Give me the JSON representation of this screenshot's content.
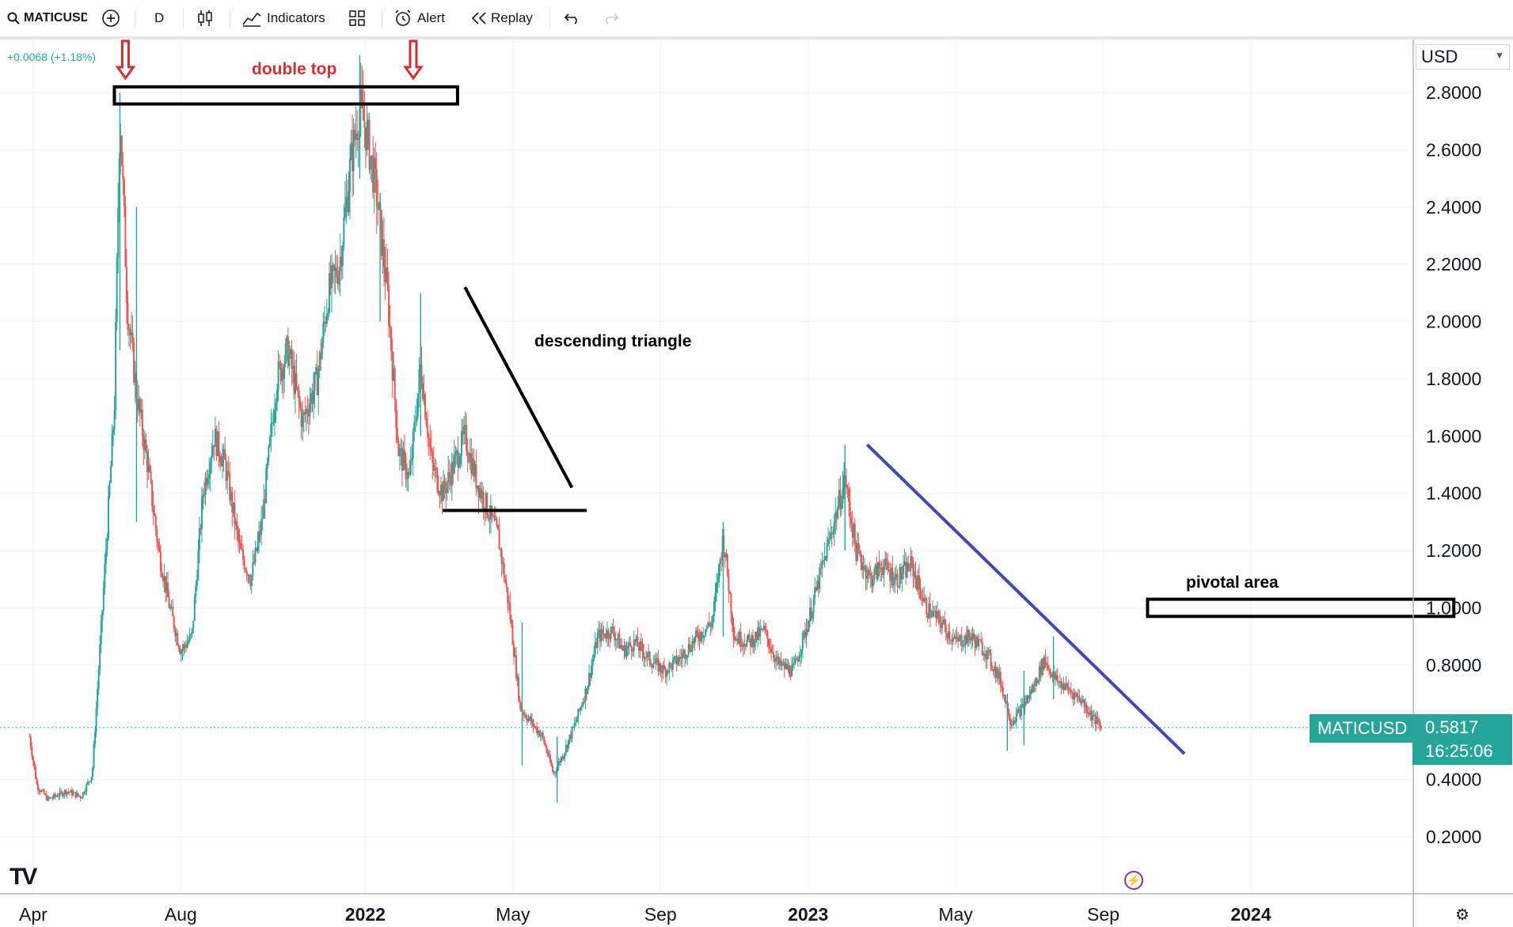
{
  "toolbar": {
    "symbol": "MATICUSD",
    "interval": "D",
    "indicators_label": "Indicators",
    "alert_label": "Alert",
    "replay_label": "Replay"
  },
  "header": {
    "change_readout": "+0.0068 (+1.18%)",
    "currency": "USD"
  },
  "price_tag": {
    "symbol": "MATICUSD",
    "price": "0.5817",
    "countdown": "16:25:06"
  },
  "annotations": {
    "double_top": "double top",
    "descending_triangle": "descending triangle",
    "pivotal_area": "pivotal area"
  },
  "colors": {
    "up": "#26a69a",
    "down": "#ef5350",
    "trendline_blue": "#3f48b8",
    "annotation_red": "#d32f2f",
    "grid": "#f0f3fa"
  },
  "chart_data": {
    "type": "candlestick",
    "title": "MATICUSD",
    "interval": "D",
    "x_axis": {
      "ticks": [
        {
          "label": "Apr",
          "month_index": 0
        },
        {
          "label": "Aug",
          "month_index": 4
        },
        {
          "label": "2022",
          "month_index": 9,
          "bold": true
        },
        {
          "label": "May",
          "month_index": 13
        },
        {
          "label": "Sep",
          "month_index": 17
        },
        {
          "label": "2023",
          "month_index": 21,
          "bold": true
        },
        {
          "label": "May",
          "month_index": 25
        },
        {
          "label": "Sep",
          "month_index": 29
        },
        {
          "label": "2024",
          "month_index": 33,
          "bold": true
        }
      ],
      "range_months": [
        -0.9,
        37.4
      ]
    },
    "y_axis": {
      "unit": "USD",
      "range": [
        0,
        2.9
      ],
      "ticks": [
        "2.8000",
        "2.6000",
        "2.4000",
        "2.2000",
        "2.0000",
        "1.8000",
        "1.6000",
        "1.4000",
        "1.2000",
        "1.0000",
        "0.8000",
        "0.4000",
        "0.2000"
      ]
    },
    "last_price": 0.5817,
    "price_path": [
      [
        -0.1,
        0.55
      ],
      [
        0.1,
        0.38
      ],
      [
        0.4,
        0.33
      ],
      [
        0.9,
        0.36
      ],
      [
        1.3,
        0.34
      ],
      [
        1.6,
        0.42
      ],
      [
        1.9,
        1.05
      ],
      [
        2.2,
        1.7
      ],
      [
        2.35,
        2.75
      ],
      [
        2.55,
        2.05
      ],
      [
        2.8,
        1.75
      ],
      [
        3.1,
        1.5
      ],
      [
        3.4,
        1.2
      ],
      [
        3.7,
        1.0
      ],
      [
        4.0,
        0.85
      ],
      [
        4.3,
        0.9
      ],
      [
        4.6,
        1.4
      ],
      [
        4.9,
        1.6
      ],
      [
        5.2,
        1.5
      ],
      [
        5.6,
        1.2
      ],
      [
        5.9,
        1.1
      ],
      [
        6.2,
        1.3
      ],
      [
        6.6,
        1.8
      ],
      [
        6.9,
        1.9
      ],
      [
        7.3,
        1.65
      ],
      [
        7.7,
        1.8
      ],
      [
        8.0,
        2.1
      ],
      [
        8.3,
        2.2
      ],
      [
        8.6,
        2.55
      ],
      [
        8.85,
        2.75
      ],
      [
        9.05,
        2.65
      ],
      [
        9.3,
        2.45
      ],
      [
        9.6,
        2.1
      ],
      [
        9.9,
        1.55
      ],
      [
        10.2,
        1.45
      ],
      [
        10.5,
        1.85
      ],
      [
        10.8,
        1.5
      ],
      [
        11.1,
        1.4
      ],
      [
        11.4,
        1.5
      ],
      [
        11.7,
        1.6
      ],
      [
        12.0,
        1.45
      ],
      [
        12.3,
        1.35
      ],
      [
        12.6,
        1.25
      ],
      [
        12.9,
        1.0
      ],
      [
        13.2,
        0.65
      ],
      [
        13.5,
        0.6
      ],
      [
        13.8,
        0.55
      ],
      [
        14.1,
        0.42
      ],
      [
        14.4,
        0.5
      ],
      [
        14.7,
        0.6
      ],
      [
        15.0,
        0.72
      ],
      [
        15.3,
        0.9
      ],
      [
        15.7,
        0.92
      ],
      [
        16.0,
        0.85
      ],
      [
        16.3,
        0.88
      ],
      [
        16.7,
        0.82
      ],
      [
        17.1,
        0.78
      ],
      [
        17.5,
        0.82
      ],
      [
        18.0,
        0.9
      ],
      [
        18.4,
        0.95
      ],
      [
        18.7,
        1.25
      ],
      [
        19.0,
        0.9
      ],
      [
        19.4,
        0.88
      ],
      [
        19.8,
        0.92
      ],
      [
        20.2,
        0.8
      ],
      [
        20.6,
        0.78
      ],
      [
        21.0,
        0.95
      ],
      [
        21.4,
        1.15
      ],
      [
        21.7,
        1.3
      ],
      [
        22.0,
        1.45
      ],
      [
        22.3,
        1.2
      ],
      [
        22.7,
        1.1
      ],
      [
        23.0,
        1.15
      ],
      [
        23.4,
        1.1
      ],
      [
        23.8,
        1.15
      ],
      [
        24.2,
        1.0
      ],
      [
        24.6,
        0.95
      ],
      [
        25.0,
        0.88
      ],
      [
        25.4,
        0.9
      ],
      [
        25.8,
        0.85
      ],
      [
        26.2,
        0.75
      ],
      [
        26.5,
        0.6
      ],
      [
        26.8,
        0.65
      ],
      [
        27.1,
        0.72
      ],
      [
        27.4,
        0.82
      ],
      [
        27.7,
        0.75
      ],
      [
        28.0,
        0.72
      ],
      [
        28.4,
        0.68
      ],
      [
        28.7,
        0.62
      ],
      [
        28.95,
        0.58
      ]
    ],
    "extreme_wicks": [
      {
        "month": 2.35,
        "high": 2.8,
        "low": 1.9
      },
      {
        "month": 2.8,
        "high": 2.4,
        "low": 1.3
      },
      {
        "month": 8.85,
        "high": 2.93,
        "low": 2.5
      },
      {
        "month": 9.4,
        "high": 2.45,
        "low": 2.0
      },
      {
        "month": 10.5,
        "high": 2.1,
        "low": 1.6
      },
      {
        "month": 13.25,
        "high": 0.95,
        "low": 0.45
      },
      {
        "month": 14.2,
        "high": 0.55,
        "low": 0.32
      },
      {
        "month": 18.7,
        "high": 1.3,
        "low": 0.9
      },
      {
        "month": 22.0,
        "high": 1.57,
        "low": 1.2
      },
      {
        "month": 26.4,
        "high": 0.7,
        "low": 0.5
      },
      {
        "month": 26.85,
        "high": 0.78,
        "low": 0.52
      },
      {
        "month": 27.65,
        "high": 0.9,
        "low": 0.68
      }
    ],
    "drawings": [
      {
        "type": "rectangle",
        "label": "double top",
        "month_range": [
          2.2,
          11.5
        ],
        "price_range": [
          2.76,
          2.82
        ]
      },
      {
        "type": "arrow",
        "month": 2.5,
        "price_range": [
          2.85,
          2.98
        ],
        "color": "red"
      },
      {
        "type": "arrow",
        "month": 10.3,
        "price_range": [
          2.85,
          2.98
        ],
        "color": "red"
      },
      {
        "type": "trendline",
        "label": "descending triangle",
        "from": [
          11.7,
          2.12
        ],
        "to": [
          14.6,
          1.42
        ]
      },
      {
        "type": "horizontal_segment",
        "month_range": [
          11.1,
          15.0
        ],
        "price": 1.34
      },
      {
        "type": "trendline",
        "from": [
          22.6,
          1.57
        ],
        "to": [
          31.2,
          0.49
        ],
        "color": "blue"
      },
      {
        "type": "rectangle",
        "label": "pivotal area",
        "month_range": [
          30.2,
          38.5
        ],
        "price_range": [
          0.97,
          1.03
        ]
      }
    ]
  }
}
